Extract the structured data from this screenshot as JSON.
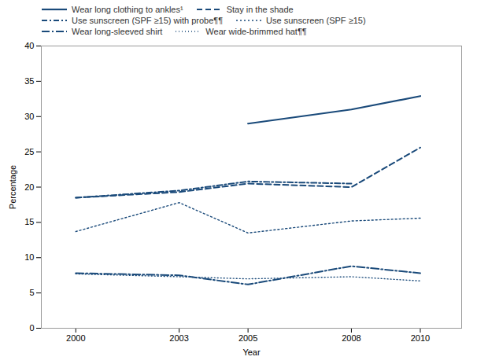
{
  "chart_data": {
    "type": "line",
    "x": [
      2000,
      2003,
      2005,
      2008,
      2010
    ],
    "series": [
      {
        "name": "Wear long clothing to ankles¹",
        "values": [
          null,
          null,
          29.0,
          31.0,
          32.9
        ],
        "line_style": "solid"
      },
      {
        "name": "Stay in the shade",
        "values": [
          18.5,
          19.3,
          20.5,
          20.0,
          25.6
        ],
        "line_style": "dashed"
      },
      {
        "name": "Use sunscreen (SPF ≥15) with probe¶¶",
        "values": [
          18.5,
          19.5,
          20.8,
          20.5,
          null
        ],
        "line_style": "dashdot"
      },
      {
        "name": "Use sunscreen (SPF ≥15)",
        "values": [
          13.7,
          17.8,
          13.5,
          15.2,
          15.6
        ],
        "line_style": "dotted"
      },
      {
        "name": "Wear long-sleeved shirt",
        "values": [
          7.8,
          7.5,
          6.2,
          8.8,
          7.8
        ],
        "line_style": "longdashdot"
      },
      {
        "name": "Wear wide-brimmed hat¶¶",
        "values": [
          7.7,
          7.3,
          7.0,
          7.3,
          6.7
        ],
        "line_style": "sparsedotted"
      }
    ],
    "color": "#1a4a7a",
    "xlabel": "Year",
    "ylabel": "Percentage",
    "xlim": [
      1999.0,
      2011.2
    ],
    "ylim": [
      0,
      40
    ],
    "xticks": [
      2000,
      2003,
      2005,
      2008,
      2010
    ],
    "yticks": [
      0,
      5,
      10,
      15,
      20,
      25,
      30,
      35,
      40
    ],
    "legend": "upper left",
    "grid": false
  }
}
